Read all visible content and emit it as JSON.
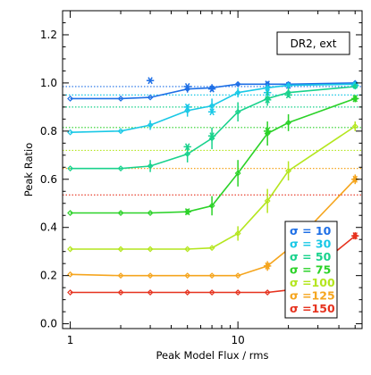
{
  "chart_data": {
    "type": "line",
    "xlabel": "Peak Model Flux / rms",
    "ylabel": "Peak Ratio",
    "xscale": "log",
    "xlim": [
      0.9,
      55
    ],
    "ylim": [
      -0.02,
      1.3
    ],
    "x_ticks": [
      1,
      10
    ],
    "x_tick_labels": [
      "1",
      "10"
    ],
    "y_ticks": [
      0.0,
      0.2,
      0.4,
      0.6,
      0.8,
      1.0,
      1.2
    ],
    "y_tick_labels": [
      "0.0",
      "0.2",
      "0.4",
      "0.6",
      "0.8",
      "1.0",
      "1.2"
    ],
    "annotation": "DR2, ext",
    "legend_position": "bottom-right",
    "x": [
      1,
      2,
      3,
      5,
      7,
      10,
      15,
      20,
      50
    ],
    "series": [
      {
        "name": "σ = 10",
        "color": "#1e6fe6",
        "values": [
          0.935,
          0.935,
          0.94,
          0.975,
          0.98,
          0.995,
          0.995,
          0.995,
          1.0
        ],
        "errors": [
          0,
          0,
          0,
          0.015,
          0.015,
          0.008,
          0.008,
          0.005,
          0.005
        ],
        "star_x": [
          3,
          5,
          7,
          15,
          20
        ],
        "star_y": [
          1.01,
          0.985,
          0.975,
          0.995,
          0.99
        ],
        "reference": 0.985
      },
      {
        "name": "σ = 30",
        "color": "#19c8e6",
        "values": [
          0.795,
          0.8,
          0.825,
          0.885,
          0.905,
          0.96,
          0.98,
          0.99,
          0.995
        ],
        "errors": [
          0,
          0,
          0.02,
          0.025,
          0.03,
          0.02,
          0.015,
          0.01,
          0.01
        ],
        "star_x": [
          5,
          7,
          15,
          50
        ],
        "star_y": [
          0.9,
          0.88,
          0.96,
          0.99
        ],
        "reference": 0.95
      },
      {
        "name": "σ = 50",
        "color": "#19d28c",
        "values": [
          0.645,
          0.645,
          0.655,
          0.705,
          0.77,
          0.88,
          0.935,
          0.96,
          0.985
        ],
        "errors": [
          0,
          0,
          0.025,
          0.035,
          0.045,
          0.04,
          0.03,
          0.02,
          0.01
        ],
        "star_x": [
          5,
          7,
          15,
          20
        ],
        "star_y": [
          0.735,
          0.78,
          0.93,
          0.95
        ],
        "reference": 0.9
      },
      {
        "name": "σ = 75",
        "color": "#2bd228",
        "values": [
          0.46,
          0.46,
          0.46,
          0.465,
          0.49,
          0.625,
          0.79,
          0.835,
          0.935
        ],
        "errors": [
          0,
          0,
          0,
          0,
          0.04,
          0.055,
          0.05,
          0.035,
          0.015
        ],
        "star_x": [
          5,
          15,
          50
        ],
        "star_y": [
          0.465,
          0.8,
          0.935
        ],
        "reference": 0.815
      },
      {
        "name": "σ =100",
        "color": "#b4e61e",
        "values": [
          0.31,
          0.31,
          0.31,
          0.31,
          0.315,
          0.375,
          0.51,
          0.635,
          0.82
        ],
        "errors": [
          0,
          0,
          0,
          0,
          0,
          0.03,
          0.05,
          0.04,
          0.02
        ],
        "star_x": [],
        "star_y": [],
        "reference": 0.72
      },
      {
        "name": "σ =125",
        "color": "#f5a51e",
        "values": [
          0.205,
          0.2,
          0.2,
          0.2,
          0.2,
          0.2,
          0.24,
          0.31,
          0.6
        ],
        "errors": [
          0,
          0,
          0,
          0,
          0,
          0,
          0.02,
          0.03,
          0.02
        ],
        "star_x": [
          15,
          20,
          50
        ],
        "star_y": [
          0.24,
          0.3,
          0.6
        ],
        "reference": 0.645
      },
      {
        "name": "σ =150",
        "color": "#e6321e",
        "values": [
          0.13,
          0.13,
          0.13,
          0.13,
          0.13,
          0.13,
          0.13,
          0.14,
          0.365
        ],
        "errors": [
          0,
          0,
          0,
          0,
          0,
          0,
          0,
          0.01,
          0.015
        ],
        "star_x": [
          20,
          50
        ],
        "star_y": [
          0.14,
          0.365
        ],
        "reference": 0.535
      }
    ]
  }
}
